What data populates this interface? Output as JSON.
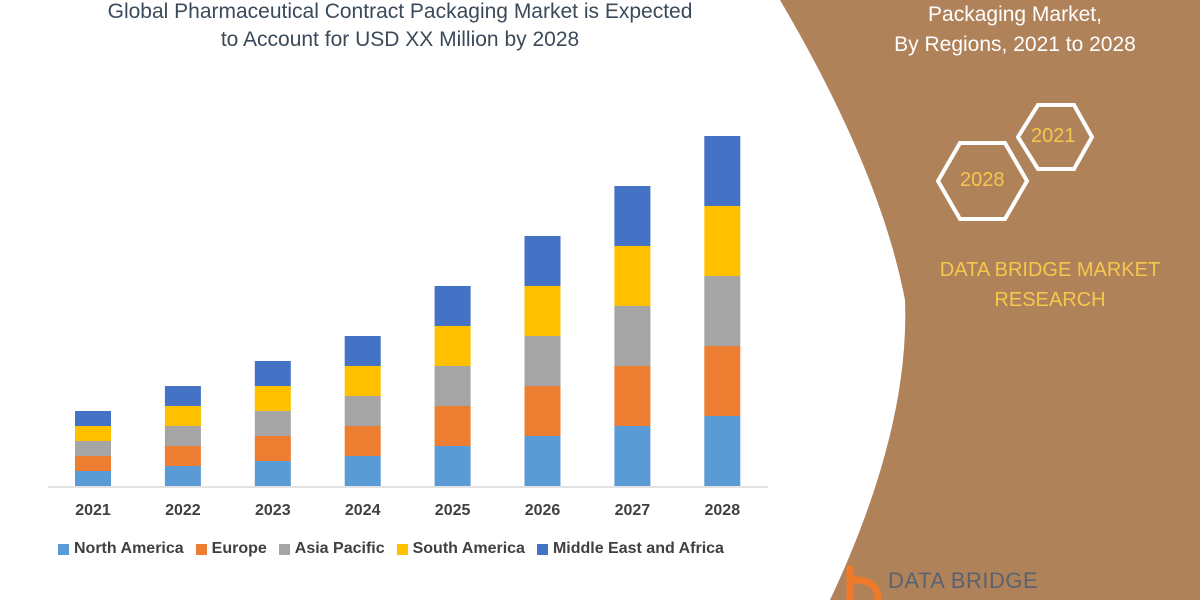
{
  "header": {
    "title_line1": "Global Pharmaceutical Contract Packaging Market is Expected",
    "title_line2": "to Account for USD XX Million by 2028"
  },
  "side_panel": {
    "title_line1": "Packaging Market,",
    "title_line2": "By Regions, 2021 to 2028",
    "hex_year_front": "2028",
    "hex_year_back": "2021",
    "brand_line1": "DATA BRIDGE MARKET",
    "brand_line2": "RESEARCH",
    "logo_text": "DATA BRIDGE",
    "panel_color": "#b0825a",
    "accent_text_color": "#f5c84c"
  },
  "chart_data": {
    "type": "bar",
    "stacked": true,
    "categories": [
      "2021",
      "2022",
      "2023",
      "2024",
      "2025",
      "2026",
      "2027",
      "2028"
    ],
    "series": [
      {
        "name": "North America",
        "color": "#5b9bd5",
        "values": [
          15,
          20,
          25,
          30,
          40,
          50,
          60,
          70
        ]
      },
      {
        "name": "Europe",
        "color": "#ed7d31",
        "values": [
          15,
          20,
          25,
          30,
          40,
          50,
          60,
          70
        ]
      },
      {
        "name": "Asia Pacific",
        "color": "#a5a5a5",
        "values": [
          15,
          20,
          25,
          30,
          40,
          50,
          60,
          70
        ]
      },
      {
        "name": "South America",
        "color": "#ffc000",
        "values": [
          15,
          20,
          25,
          30,
          40,
          50,
          60,
          70
        ]
      },
      {
        "name": "Middle East and Africa",
        "color": "#4472c4",
        "values": [
          15,
          20,
          25,
          30,
          40,
          50,
          60,
          70
        ]
      }
    ],
    "value_scale": "relative (no y-axis shown)",
    "grid": false,
    "legend_position": "bottom"
  }
}
